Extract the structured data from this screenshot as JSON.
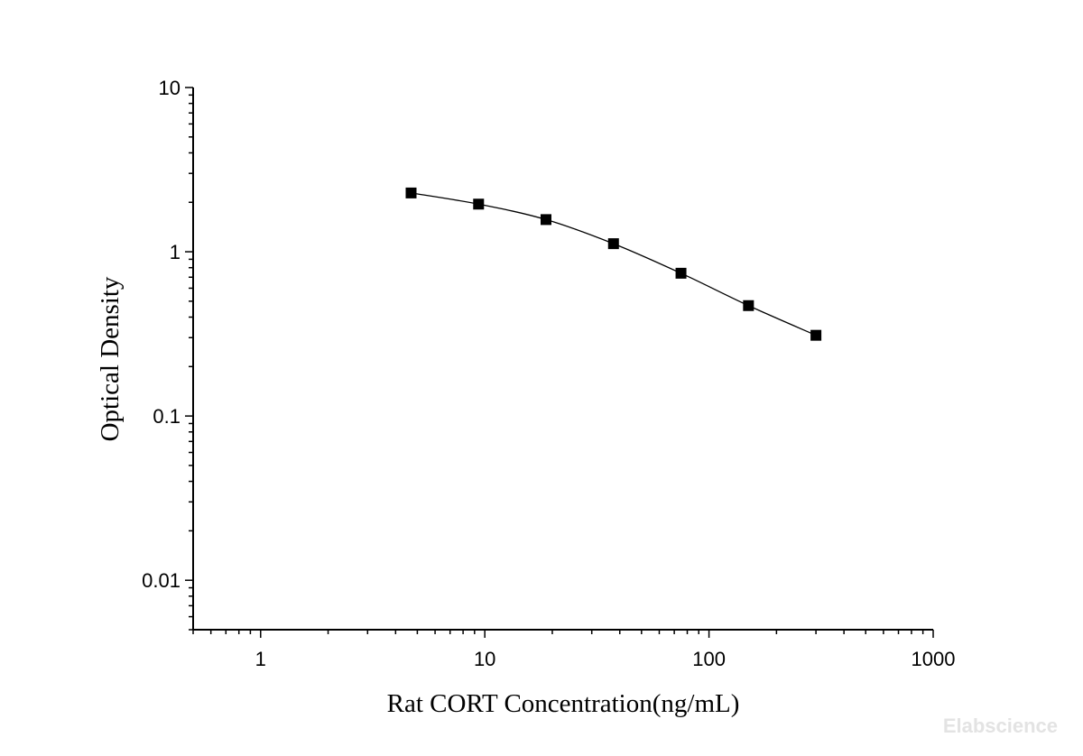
{
  "chart_data": {
    "type": "scatter",
    "xlabel": "Rat CORT Concentration(ng/mL)",
    "ylabel": "Optical Density",
    "xscale": "log",
    "yscale": "log",
    "xlim": [
      0.5,
      1000
    ],
    "ylim": [
      0.005,
      10
    ],
    "x_ticks": [
      1,
      10,
      100,
      1000
    ],
    "x_tick_labels": [
      "1",
      "10",
      "100",
      "1000"
    ],
    "y_ticks": [
      0.01,
      0.1,
      1,
      10
    ],
    "y_tick_labels": [
      "0.01",
      "0.1",
      "1",
      "10"
    ],
    "grid": false,
    "legend": "none",
    "fit_line": true,
    "marker": "square",
    "marker_color": "#000000",
    "series": [
      {
        "x": [
          4.69,
          9.38,
          18.75,
          37.5,
          75,
          150,
          300
        ],
        "y": [
          2.28,
          1.95,
          1.57,
          1.12,
          0.74,
          0.47,
          0.31
        ]
      }
    ]
  },
  "watermark": "Elabscience"
}
